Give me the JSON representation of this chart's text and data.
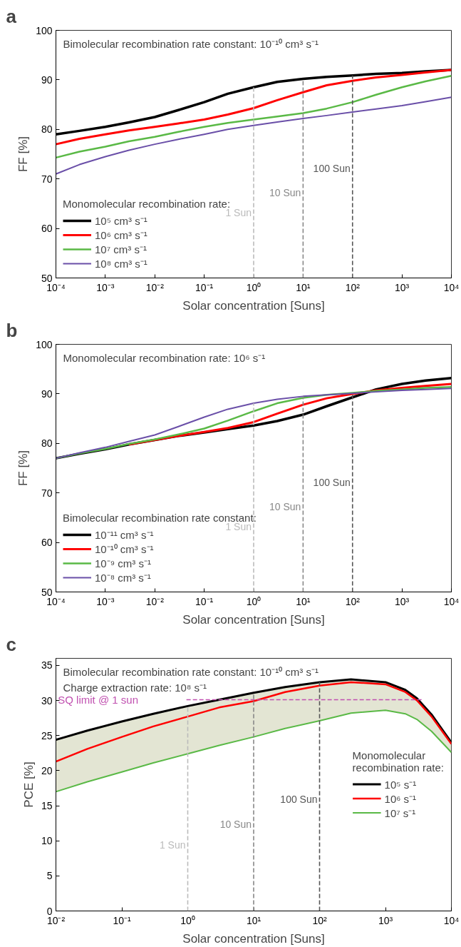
{
  "chart_data": [
    {
      "type": "line",
      "title": "a",
      "xlabel": "Solar concentration [Suns]",
      "ylabel": "FF [%]",
      "legend_title": "Monomolecular recombination rate:",
      "annotations": [
        "Bimolecular recombination rate constant: 10⁻¹⁰ cm³ s⁻¹"
      ],
      "ref_lines": [
        {
          "axis": "x",
          "value": 1,
          "label": "1 Sun",
          "color": "#bbbbbb",
          "line_style": "dashed"
        },
        {
          "axis": "x",
          "value": 10,
          "label": "10 Sun",
          "color": "#888888",
          "line_style": "dashed"
        },
        {
          "axis": "x",
          "value": 100,
          "label": "100 Sun",
          "color": "#555555",
          "line_style": "dashed"
        }
      ],
      "x": [
        0.0001,
        0.0003,
        0.001,
        0.003,
        0.01,
        0.03,
        0.1,
        0.3,
        1,
        3,
        10,
        30,
        100,
        300,
        1000,
        3000,
        10000
      ],
      "series": [
        {
          "name": "10⁵ cm³ s⁻¹",
          "color": "#000000",
          "values": [
            79,
            79.7,
            80.5,
            81.4,
            82.5,
            83.9,
            85.5,
            87.2,
            88.5,
            89.6,
            90.2,
            90.6,
            90.9,
            91.2,
            91.4,
            91.7,
            92
          ]
        },
        {
          "name": "10⁶ cm³ s⁻¹",
          "color": "#ff0000",
          "values": [
            77,
            78.1,
            79,
            79.8,
            80.5,
            81.2,
            82,
            83,
            84.3,
            85.9,
            87.5,
            88.9,
            89.8,
            90.5,
            91,
            91.5,
            92
          ]
        },
        {
          "name": "10⁷ cm³ s⁻¹",
          "color": "#5ab946",
          "values": [
            74.3,
            75.5,
            76.5,
            77.6,
            78.5,
            79.5,
            80.5,
            81.3,
            82,
            82.6,
            83.3,
            84.2,
            85.5,
            87,
            88.5,
            89.7,
            90.8
          ]
        },
        {
          "name": "10⁸ cm³ s⁻¹",
          "color": "#6a4fa8",
          "values": [
            71,
            72.9,
            74.5,
            75.8,
            77,
            78,
            79,
            80,
            80.8,
            81.5,
            82.2,
            82.8,
            83.5,
            84.1,
            84.8,
            85.6,
            86.5
          ]
        }
      ],
      "log": "x",
      "xlim": [
        0.0001,
        10000
      ],
      "ylim": [
        50,
        100
      ],
      "xticks": [
        {
          "value": 0.0001,
          "label": "10⁻⁴"
        },
        {
          "value": 0.001,
          "label": "10⁻³"
        },
        {
          "value": 0.01,
          "label": "10⁻²"
        },
        {
          "value": 0.1,
          "label": "10⁻¹"
        },
        {
          "value": 1,
          "label": "10⁰"
        },
        {
          "value": 10,
          "label": "10¹"
        },
        {
          "value": 100,
          "label": "10²"
        },
        {
          "value": 1000,
          "label": "10³"
        },
        {
          "value": 10000,
          "label": "10⁴"
        }
      ],
      "yticks": [
        50,
        60,
        70,
        80,
        90,
        100
      ],
      "legend": "bottom left",
      "marker": "none",
      "line_style": "solid"
    },
    {
      "type": "line",
      "title": "b",
      "xlabel": "Solar concentration [Suns]",
      "ylabel": "FF [%]",
      "legend_title": "Bimolecular recombination rate constant:",
      "annotations": [
        "Monomolecular recombination rate: 10⁶ s⁻¹"
      ],
      "ref_lines": [
        {
          "axis": "x",
          "value": 1,
          "label": "1 Sun",
          "color": "#bbbbbb",
          "line_style": "dashed"
        },
        {
          "axis": "x",
          "value": 10,
          "label": "10 Sun",
          "color": "#888888",
          "line_style": "dashed"
        },
        {
          "axis": "x",
          "value": 100,
          "label": "100 Sun",
          "color": "#555555",
          "line_style": "dashed"
        }
      ],
      "x": [
        0.0001,
        0.0003,
        0.001,
        0.003,
        0.01,
        0.03,
        0.1,
        0.3,
        1,
        3,
        10,
        30,
        100,
        300,
        1000,
        3000,
        10000
      ],
      "series": [
        {
          "name": "10⁻¹¹ cm³ s⁻¹",
          "color": "#000000",
          "values": [
            77,
            77.9,
            78.8,
            79.8,
            80.7,
            81.5,
            82.2,
            82.9,
            83.6,
            84.5,
            85.8,
            87.5,
            89.3,
            90.9,
            92,
            92.7,
            93.2
          ]
        },
        {
          "name": "10⁻¹⁰ cm³ s⁻¹",
          "color": "#ff0000",
          "values": [
            null,
            null,
            null,
            79.8,
            80.7,
            81.5,
            82.3,
            83.1,
            84.3,
            86,
            87.8,
            89.1,
            90,
            90.7,
            91.2,
            91.6,
            92
          ]
        },
        {
          "name": "10⁻⁹ cm³ s⁻¹",
          "color": "#5ab946",
          "values": [
            77,
            78,
            78.9,
            79.9,
            80.8,
            81.8,
            83,
            84.6,
            86.5,
            88.1,
            89.2,
            89.8,
            90.2,
            90.6,
            90.9,
            91.2,
            91.4
          ]
        },
        {
          "name": "10⁻⁸ cm³ s⁻¹",
          "color": "#6a4fa8",
          "values": [
            77,
            78.1,
            79.2,
            80.4,
            81.7,
            83.4,
            85.3,
            86.9,
            88.1,
            88.9,
            89.5,
            89.8,
            90.1,
            90.4,
            90.7,
            90.9,
            91.1
          ]
        }
      ],
      "log": "x",
      "xlim": [
        0.0001,
        10000
      ],
      "ylim": [
        50,
        100
      ],
      "xticks": [
        {
          "value": 0.0001,
          "label": "10⁻⁴"
        },
        {
          "value": 0.001,
          "label": "10⁻³"
        },
        {
          "value": 0.01,
          "label": "10⁻²"
        },
        {
          "value": 0.1,
          "label": "10⁻¹"
        },
        {
          "value": 1,
          "label": "10⁰"
        },
        {
          "value": 10,
          "label": "10¹"
        },
        {
          "value": 100,
          "label": "10²"
        },
        {
          "value": 1000,
          "label": "10³"
        },
        {
          "value": 10000,
          "label": "10⁴"
        }
      ],
      "yticks": [
        50,
        60,
        70,
        80,
        90,
        100
      ],
      "legend": "bottom left",
      "marker": "none",
      "line_style": "solid"
    },
    {
      "type": "line",
      "title": "c",
      "xlabel": "Solar concentration [Suns]",
      "ylabel": "PCE [%]",
      "legend_title": "Monomolecular recombination rate:",
      "annotations": [
        "Bimolecular recombination rate constant: 10⁻¹⁰ cm³ s⁻¹",
        "Charge extraction rate: 10⁸ s⁻¹"
      ],
      "x": [
        0.01,
        0.03,
        0.1,
        0.3,
        1,
        3,
        10,
        30,
        100,
        300,
        1000,
        2000,
        3000,
        5000,
        10000
      ],
      "series": [
        {
          "name": "10⁵ s⁻¹",
          "color": "#000000",
          "values": [
            24.4,
            25.7,
            27,
            28.1,
            29.2,
            30.1,
            31.1,
            31.9,
            32.6,
            33,
            32.6,
            31.5,
            30.3,
            28,
            24
          ]
        },
        {
          "name": "10⁶ s⁻¹",
          "color": "#ff0000",
          "values": [
            21.3,
            23.1,
            24.8,
            26.3,
            27.7,
            29,
            29.9,
            31.2,
            32.1,
            32.6,
            32.3,
            31.2,
            30,
            27.7,
            23.8
          ],
          "lower": [
            17,
            18.4,
            19.8,
            21.1,
            22.4,
            23.6,
            24.8,
            26,
            27.1,
            28.2,
            28.6,
            28.1,
            27.3,
            25.6,
            22.6
          ],
          "upper": [
            24.4,
            25.7,
            27,
            28.1,
            29.2,
            30.1,
            31.1,
            31.9,
            32.6,
            33,
            32.6,
            31.5,
            30.3,
            28,
            24
          ]
        },
        {
          "name": "10⁷ s⁻¹",
          "color": "#5ab946",
          "values": [
            17,
            18.4,
            19.8,
            21.1,
            22.4,
            23.6,
            24.8,
            26,
            27.1,
            28.2,
            28.6,
            28.1,
            27.3,
            25.6,
            22.6
          ]
        }
      ],
      "ref_lines": [
        {
          "axis": "y",
          "value": 30.1,
          "label": "SQ limit @ 1 sun",
          "color": "#c050b0",
          "line_style": "dashed"
        },
        {
          "axis": "x",
          "value": 1,
          "label": "1 Sun",
          "color": "#bbbbbb",
          "line_style": "dashed"
        },
        {
          "axis": "x",
          "value": 10,
          "label": "10 Sun",
          "color": "#888888",
          "line_style": "dashed"
        },
        {
          "axis": "x",
          "value": 100,
          "label": "100 Sun",
          "color": "#555555",
          "line_style": "dashed"
        }
      ],
      "log": "x",
      "xlim": [
        0.01,
        10000
      ],
      "ylim": [
        0,
        36
      ],
      "xticks": [
        {
          "value": 0.01,
          "label": "10⁻²"
        },
        {
          "value": 0.1,
          "label": "10⁻¹"
        },
        {
          "value": 1,
          "label": "10⁰"
        },
        {
          "value": 10,
          "label": "10¹"
        },
        {
          "value": 100,
          "label": "10²"
        },
        {
          "value": 1000,
          "label": "10³"
        },
        {
          "value": 10000,
          "label": "10⁴"
        }
      ],
      "yticks": [
        0,
        5,
        10,
        15,
        20,
        25,
        30,
        35
      ],
      "legend": "right",
      "marker": "none",
      "line_style": "solid"
    }
  ]
}
